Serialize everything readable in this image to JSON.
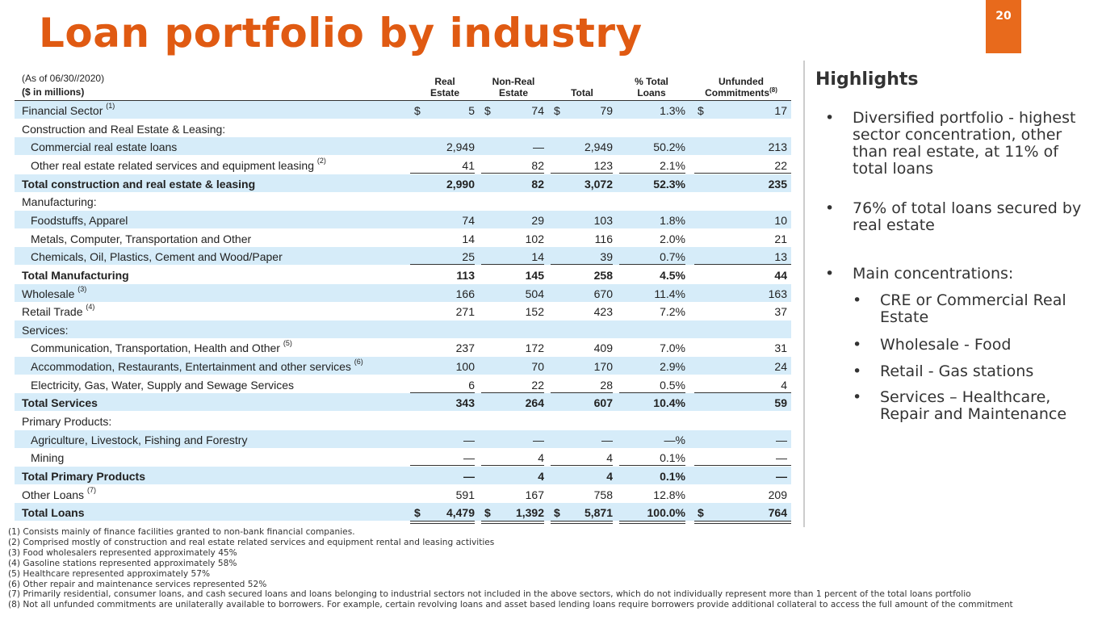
{
  "title": "Loan portfolio by industry",
  "page_number": "20",
  "table": {
    "note_date": "(As of 06/30//2020)",
    "note_units": "($ in millions)",
    "headers": [
      {
        "lines": [
          "Real",
          "Estate"
        ]
      },
      {
        "lines": [
          "Non-Real",
          "Estate"
        ]
      },
      {
        "lines": [
          "",
          "Total"
        ]
      },
      {
        "lines": [
          "% Total",
          "Loans"
        ]
      },
      {
        "lines": [
          "Unfunded",
          "Commitments"
        ],
        "note": "(8)"
      }
    ],
    "rows": [
      {
        "label": "Financial Sector",
        "note": "(1)",
        "currency": "$",
        "values": [
          "5",
          "74",
          "79",
          "1.3%",
          "17"
        ]
      },
      {
        "label": "Construction and Real Estate & Leasing:"
      },
      {
        "label": "Commercial real estate loans",
        "values": [
          "2,949",
          "—",
          "2,949",
          "50.2%",
          "213"
        ]
      },
      {
        "label": "Other real estate related services and equipment leasing",
        "note": "(2)",
        "values": [
          "41",
          "82",
          "123",
          "2.1%",
          "22"
        ]
      },
      {
        "label": "Total construction and real estate & leasing",
        "values": [
          "2,990",
          "82",
          "3,072",
          "52.3%",
          "235"
        ]
      },
      {
        "label": "Manufacturing:"
      },
      {
        "label": "Foodstuffs, Apparel",
        "values": [
          "74",
          "29",
          "103",
          "1.8%",
          "10"
        ]
      },
      {
        "label": "Metals, Computer, Transportation and Other",
        "values": [
          "14",
          "102",
          "116",
          "2.0%",
          "21"
        ]
      },
      {
        "label": "Chemicals, Oil, Plastics, Cement and Wood/Paper",
        "values": [
          "25",
          "14",
          "39",
          "0.7%",
          "13"
        ]
      },
      {
        "label": "Total Manufacturing",
        "values": [
          "113",
          "145",
          "258",
          "4.5%",
          "44"
        ]
      },
      {
        "label": "Wholesale",
        "note": "(3)",
        "values": [
          "166",
          "504",
          "670",
          "11.4%",
          "163"
        ]
      },
      {
        "label": "Retail Trade",
        "note": "(4)",
        "values": [
          "271",
          "152",
          "423",
          "7.2%",
          "37"
        ]
      },
      {
        "label": "Services:"
      },
      {
        "label": "Communication, Transportation, Health and Other",
        "note": "(5)",
        "values": [
          "237",
          "172",
          "409",
          "7.0%",
          "31"
        ]
      },
      {
        "label": "Accommodation, Restaurants, Entertainment and other services",
        "note": "(6)",
        "values": [
          "100",
          "70",
          "170",
          "2.9%",
          "24"
        ]
      },
      {
        "label": "Electricity, Gas, Water, Supply and Sewage Services",
        "values": [
          "6",
          "22",
          "28",
          "0.5%",
          "4"
        ]
      },
      {
        "label": "Total Services",
        "values": [
          "343",
          "264",
          "607",
          "10.4%",
          "59"
        ]
      },
      {
        "label": "Primary Products:"
      },
      {
        "label": "Agriculture, Livestock, Fishing and Forestry",
        "values": [
          "—",
          "—",
          "—",
          "—%",
          "—"
        ]
      },
      {
        "label": "Mining",
        "values": [
          "—",
          "4",
          "4",
          "0.1%",
          "—"
        ]
      },
      {
        "label": "Total Primary Products",
        "values": [
          "—",
          "4",
          "4",
          "0.1%",
          "—"
        ]
      },
      {
        "label": "Other Loans",
        "note": "(7)",
        "values": [
          "591",
          "167",
          "758",
          "12.8%",
          "209"
        ]
      },
      {
        "label": "Total Loans",
        "currency": "$",
        "values": [
          "4,479",
          "1,392",
          "5,871",
          "100.0%",
          "764"
        ]
      }
    ]
  },
  "highlights": {
    "title": "Highlights",
    "bullets": [
      {
        "text": "Diversified portfolio - highest sector concentration, other than real estate, at 11% of total loans"
      },
      {
        "text": "76% of total loans secured by real estate"
      },
      {
        "text": "Main concentrations:",
        "sub": [
          "CRE or Commercial Real Estate",
          "Wholesale - Food",
          "Retail - Gas stations",
          "Services – Healthcare, Repair and Maintenance"
        ]
      }
    ]
  },
  "footnotes": [
    "(1) Consists mainly of finance facilities granted to non-bank financial companies.",
    "(2) Comprised mostly of construction and real estate related services and equipment rental and leasing activities",
    "(3) Food wholesalers represented approximately 45%",
    "(4) Gasoline stations represented approximately 58%",
    "(5) Healthcare represented approximately 57%",
    "(6) Other repair and maintenance services represented 52%",
    "(7) Primarily residential, consumer loans, and cash secured loans and loans belonging to industrial sectors not included in the above sectors, which do not individually represent more than 1 percent of the total loans portfolio",
    "(8) Not all unfunded commitments are unilaterally available to borrowers. For example, certain revolving loans and asset based lending loans require borrowers provide additional collateral to access the full amount of the commitment"
  ]
}
